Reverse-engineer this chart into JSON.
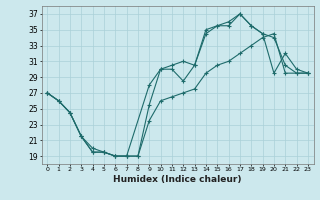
{
  "xlabel": "Humidex (Indice chaleur)",
  "bg_color": "#cce8ed",
  "grid_color": "#aad0d8",
  "line_color": "#1e6b6b",
  "xlim": [
    -0.5,
    23.5
  ],
  "ylim": [
    18,
    38
  ],
  "yticks": [
    19,
    21,
    23,
    25,
    27,
    29,
    31,
    33,
    35,
    37
  ],
  "xticks": [
    0,
    1,
    2,
    3,
    4,
    5,
    6,
    7,
    8,
    9,
    10,
    11,
    12,
    13,
    14,
    15,
    16,
    17,
    18,
    19,
    20,
    21,
    22,
    23
  ],
  "line1_x": [
    0,
    1,
    2,
    3,
    4,
    5,
    6,
    7,
    8,
    9,
    10,
    11,
    12,
    13,
    14,
    15,
    16,
    17,
    18,
    19,
    20,
    21,
    22,
    23
  ],
  "line1_y": [
    27,
    26,
    24.5,
    21.5,
    19.5,
    19.5,
    19,
    19,
    19,
    25.5,
    30,
    30,
    28.5,
    30.5,
    34.5,
    35.5,
    35.5,
    37,
    35.5,
    34.5,
    29.5,
    32,
    30,
    29.5
  ],
  "line2_x": [
    0,
    1,
    2,
    3,
    4,
    5,
    6,
    7,
    9,
    10,
    11,
    12,
    13,
    14,
    15,
    16,
    17,
    18,
    19,
    20,
    21,
    22,
    23
  ],
  "line2_y": [
    27,
    26,
    24.5,
    21.5,
    19.5,
    19.5,
    19,
    19,
    28,
    30,
    30.5,
    31,
    30.5,
    35,
    35.5,
    36,
    37,
    35.5,
    34.5,
    34,
    30.5,
    29.5,
    29.5
  ],
  "line3_x": [
    0,
    1,
    2,
    3,
    4,
    5,
    6,
    7,
    8,
    9,
    10,
    11,
    12,
    13,
    14,
    15,
    16,
    17,
    18,
    19,
    20,
    21,
    22,
    23
  ],
  "line3_y": [
    27,
    26,
    24.5,
    21.5,
    20,
    19.5,
    19,
    19,
    19,
    23.5,
    26,
    26.5,
    27,
    27.5,
    29.5,
    30.5,
    31,
    32,
    33,
    34,
    34.5,
    29.5,
    29.5,
    29.5
  ]
}
